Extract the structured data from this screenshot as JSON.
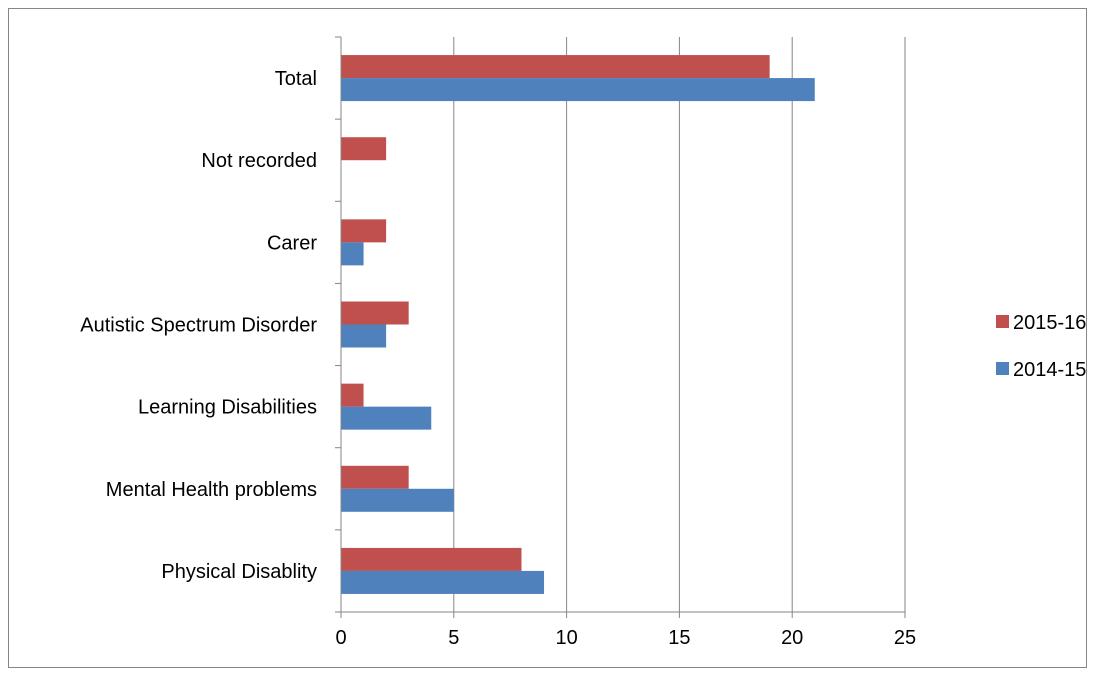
{
  "chart_data": {
    "type": "bar",
    "orientation": "horizontal",
    "categories": [
      "Physical Disablity",
      "Mental Health problems",
      "Learning Disabilities",
      "Autistic Spectrum Disorder",
      "Carer",
      "Not recorded",
      "Total"
    ],
    "series": [
      {
        "name": "2015-16",
        "color": "#C0504D",
        "values": [
          8,
          3,
          1,
          3,
          2,
          2,
          19
        ]
      },
      {
        "name": "2014-15",
        "color": "#4F81BD",
        "values": [
          9,
          5,
          4,
          2,
          1,
          0,
          21
        ]
      }
    ],
    "xlim": [
      0,
      25
    ],
    "xticks": [
      "0",
      "5",
      "10",
      "15",
      "20",
      "25"
    ],
    "grid": true,
    "legend_position": "right"
  }
}
